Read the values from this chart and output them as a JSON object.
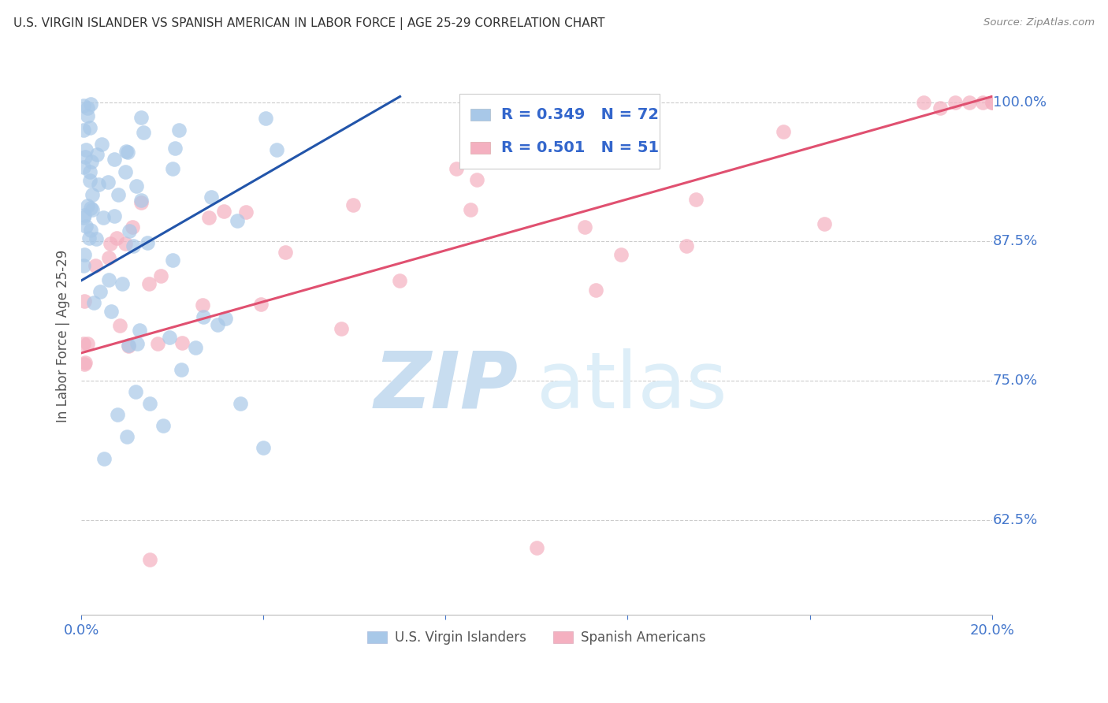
{
  "title": "U.S. VIRGIN ISLANDER VS SPANISH AMERICAN IN LABOR FORCE | AGE 25-29 CORRELATION CHART",
  "source": "Source: ZipAtlas.com",
  "ylabel": "In Labor Force | Age 25-29",
  "yticklabel_positions": [
    0.625,
    0.75,
    0.875,
    1.0
  ],
  "yticklabel_values": [
    "62.5%",
    "75.0%",
    "87.5%",
    "100.0%"
  ],
  "xlim": [
    0.0,
    0.2
  ],
  "ylim": [
    0.54,
    1.04
  ],
  "blue_scatter_color": "#a8c8e8",
  "pink_scatter_color": "#f4b0c0",
  "blue_line_color": "#2255aa",
  "pink_line_color": "#e05070",
  "grid_color": "#cccccc",
  "title_color": "#333333",
  "axis_label_color": "#555555",
  "tick_color": "#4477cc",
  "legend_text_color": "#3366cc",
  "legend_label_blue": "U.S. Virgin Islanders",
  "legend_label_pink": "Spanish Americans",
  "watermark_zip": "ZIP",
  "watermark_atlas": "atlas",
  "watermark_color": "#ddeeff",
  "background_color": "#ffffff",
  "blue_line_x0": 0.0,
  "blue_line_y0": 0.84,
  "blue_line_x1": 0.07,
  "blue_line_y1": 1.005,
  "pink_line_x0": 0.0,
  "pink_line_y0": 0.775,
  "pink_line_x1": 0.2,
  "pink_line_y1": 1.005
}
